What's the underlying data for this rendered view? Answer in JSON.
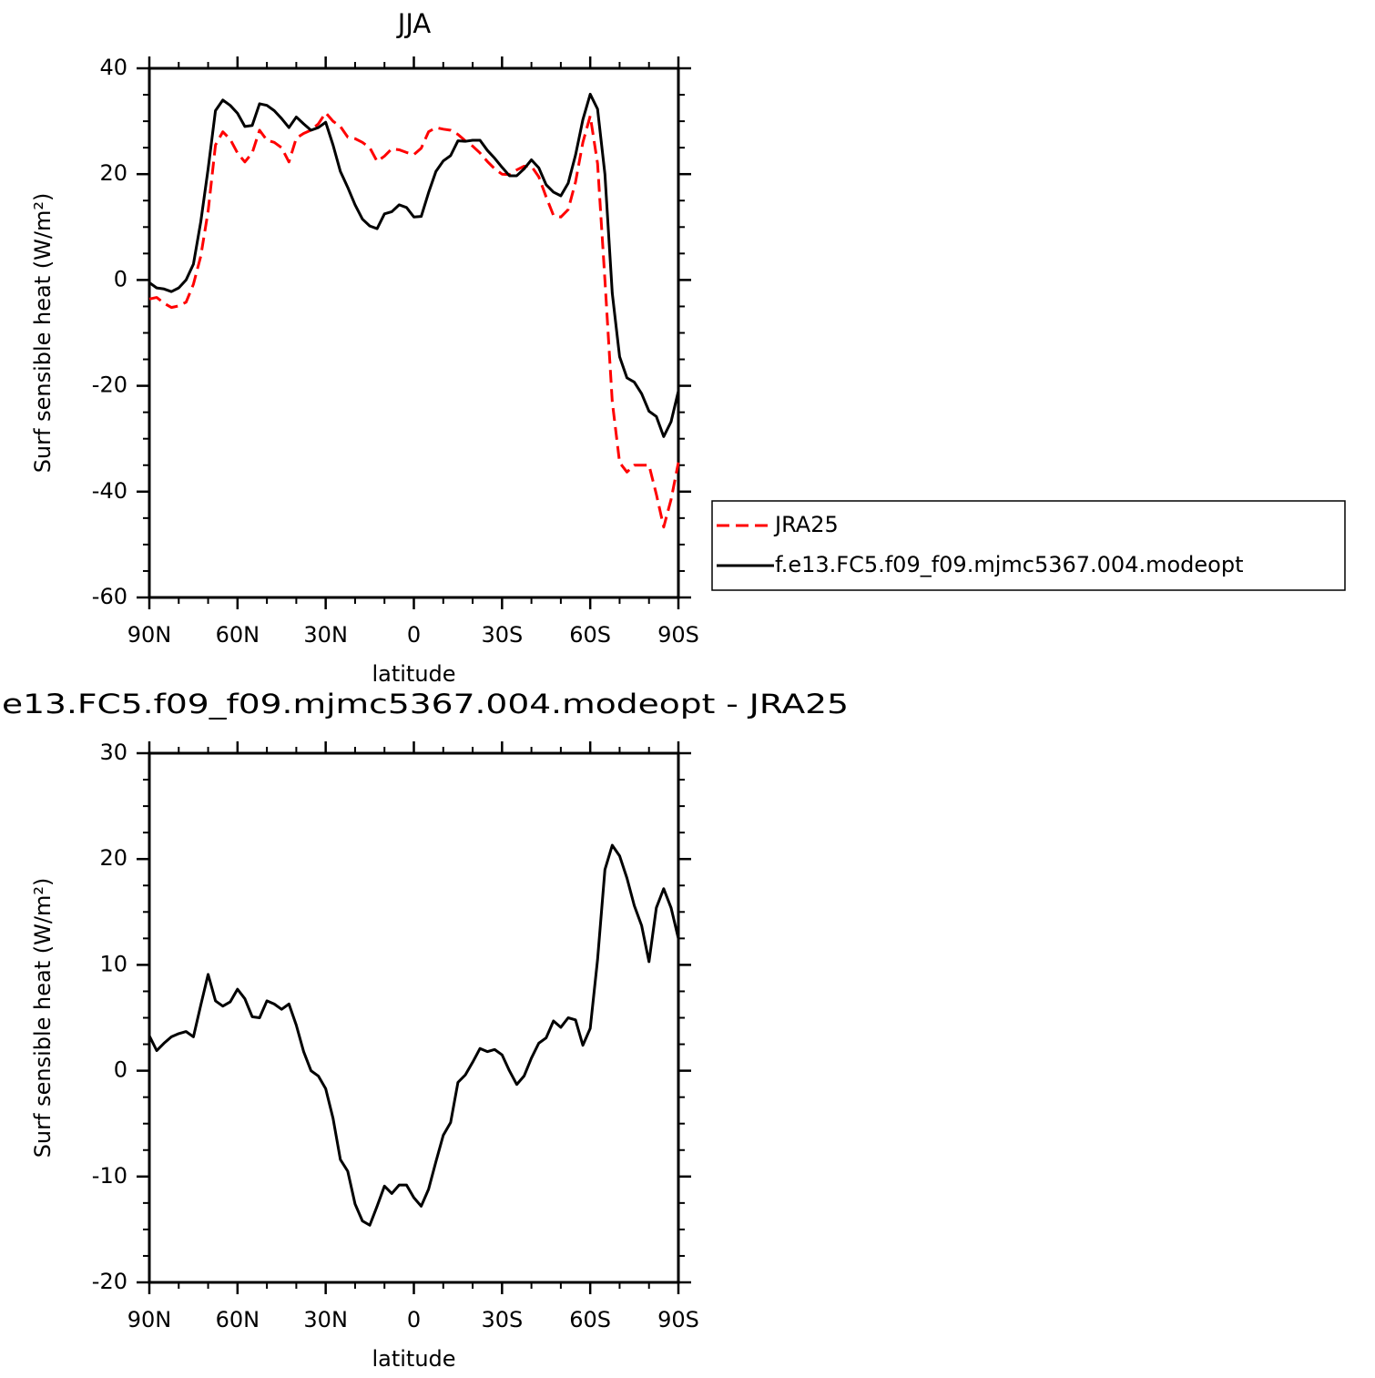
{
  "chart_data": [
    {
      "type": "line",
      "title": "JJA",
      "xlabel": "latitude",
      "ylabel": "Surf sensible heat (W/m²)",
      "x": [
        90,
        87.5,
        85,
        82.5,
        80,
        77.5,
        75,
        72.5,
        70,
        67.5,
        65,
        62.5,
        60,
        57.5,
        55,
        52.5,
        50,
        47.5,
        45,
        42.5,
        40,
        37.5,
        35,
        32.5,
        30,
        27.5,
        25,
        22.5,
        20,
        17.5,
        15,
        12.5,
        10,
        7.5,
        5,
        2.5,
        0,
        -2.5,
        -5,
        -7.5,
        -10,
        -12.5,
        -15,
        -17.5,
        -20,
        -22.5,
        -25,
        -27.5,
        -30,
        -32.5,
        -35,
        -37.5,
        -40,
        -42.5,
        -45,
        -47.5,
        -50,
        -52.5,
        -55,
        -57.5,
        -60,
        -62.5,
        -65,
        -67.5,
        -70,
        -72.5,
        -75,
        -77.5,
        -80,
        -82.5,
        -85,
        -87.5,
        -90
      ],
      "xlim": [
        90,
        -90
      ],
      "xticks": [
        {
          "value": 90,
          "label": "90N"
        },
        {
          "value": 60,
          "label": "60N"
        },
        {
          "value": 30,
          "label": "30N"
        },
        0,
        {
          "value": -30,
          "label": "30S"
        },
        {
          "value": -60,
          "label": "60S"
        },
        {
          "value": -90,
          "label": "90S"
        }
      ],
      "xticks_minor": [
        80,
        70,
        50,
        40,
        20,
        10,
        -10,
        -20,
        -40,
        -50,
        -70,
        -80
      ],
      "ylim": [
        -60,
        40
      ],
      "yticks": [
        -60,
        -40,
        -20,
        0,
        20,
        40
      ],
      "yticks_minor": [
        -55,
        -50,
        -45,
        -35,
        -30,
        -25,
        -15,
        -10,
        -5,
        5,
        10,
        15,
        25,
        30,
        35
      ],
      "legend": "outside-right",
      "series": [
        {
          "name": "JRA25",
          "color": "#ff0000",
          "line_style": "dashed",
          "values": [
            -3.6,
            -3.3,
            -4.4,
            -5.2,
            -4.9,
            -4.2,
            -0.8,
            4.5,
            13,
            25.5,
            28,
            26.6,
            24,
            22.3,
            24,
            28.3,
            26.4,
            26,
            25,
            22.3,
            26.8,
            27.7,
            28.3,
            29.5,
            31.6,
            30,
            29,
            27,
            26.7,
            26,
            25,
            22.4,
            23.4,
            24.8,
            24.6,
            24.1,
            23.7,
            24.9,
            28,
            28.8,
            28.5,
            28.3,
            27.5,
            26.3,
            25.3,
            24,
            22.4,
            21,
            20,
            19.9,
            20.8,
            21.5,
            21.5,
            19.5,
            15.7,
            12.2,
            11.9,
            13.3,
            18.5,
            26,
            31,
            22,
            0,
            -23,
            -34.5,
            -36.3,
            -35,
            -35,
            -35,
            -40.5,
            -46.7,
            -41.5,
            -34.5
          ]
        },
        {
          "name": "f.e13.FC5.f09_f09.mjmc5367.004.modeopt",
          "color": "#000000",
          "line_style": "solid",
          "values": [
            -0.5,
            -1.5,
            -1.7,
            -2.2,
            -1.5,
            0,
            3,
            11,
            21,
            32,
            34,
            33,
            31.5,
            29,
            29.2,
            33.3,
            33,
            32,
            30.5,
            28.8,
            30.8,
            29.5,
            28.3,
            28.8,
            29.8,
            25.5,
            20.5,
            17.5,
            14.2,
            11.5,
            10.2,
            9.7,
            12.5,
            12.9,
            14.2,
            13.7,
            11.9,
            12,
            16.5,
            20.5,
            22.5,
            23.5,
            26.3,
            26.2,
            26.4,
            26.4,
            24.5,
            23,
            21.3,
            19.7,
            19.7,
            21,
            22.7,
            21.2,
            18,
            16.6,
            15.9,
            18.3,
            23.6,
            30.3,
            35.1,
            32.3,
            20,
            -2.5,
            -14.5,
            -18.5,
            -19.3,
            -21.5,
            -24.8,
            -25.8,
            -29.6,
            -26.8,
            -21
          ]
        }
      ]
    },
    {
      "type": "line",
      "title": "e13.FC5.f09_f09.mjmc5367.004.modeopt - JRA25",
      "xlabel": "latitude",
      "ylabel": "Surf sensible heat (W/m²)",
      "x": [
        90,
        87.5,
        85,
        82.5,
        80,
        77.5,
        75,
        72.5,
        70,
        67.5,
        65,
        62.5,
        60,
        57.5,
        55,
        52.5,
        50,
        47.5,
        45,
        42.5,
        40,
        37.5,
        35,
        32.5,
        30,
        27.5,
        25,
        22.5,
        20,
        17.5,
        15,
        12.5,
        10,
        7.5,
        5,
        2.5,
        0,
        -2.5,
        -5,
        -7.5,
        -10,
        -12.5,
        -15,
        -17.5,
        -20,
        -22.5,
        -25,
        -27.5,
        -30,
        -32.5,
        -35,
        -37.5,
        -40,
        -42.5,
        -45,
        -47.5,
        -50,
        -52.5,
        -55,
        -57.5,
        -60,
        -62.5,
        -65,
        -67.5,
        -70,
        -72.5,
        -75,
        -77.5,
        -80,
        -82.5,
        -85,
        -87.5,
        -90
      ],
      "xlim": [
        90,
        -90
      ],
      "xticks": [
        {
          "value": 90,
          "label": "90N"
        },
        {
          "value": 60,
          "label": "60N"
        },
        {
          "value": 30,
          "label": "30N"
        },
        0,
        {
          "value": -30,
          "label": "30S"
        },
        {
          "value": -60,
          "label": "60S"
        },
        {
          "value": -90,
          "label": "90S"
        }
      ],
      "xticks_minor": [
        80,
        70,
        50,
        40,
        20,
        10,
        -10,
        -20,
        -40,
        -50,
        -70,
        -80
      ],
      "ylim": [
        -20,
        30
      ],
      "yticks": [
        -20,
        -10,
        0,
        10,
        20,
        30
      ],
      "yticks_minor": [
        -17.5,
        -15,
        -12.5,
        -7.5,
        -5,
        -2.5,
        2.5,
        5,
        7.5,
        12.5,
        15,
        17.5,
        22.5,
        25,
        27.5
      ],
      "series": [
        {
          "color": "#000000",
          "line_style": "solid",
          "values": [
            3.3,
            1.9,
            2.6,
            3.2,
            3.5,
            3.7,
            3.2,
            6.2,
            9.1,
            6.6,
            6.1,
            6.5,
            7.7,
            6.8,
            5.1,
            5,
            6.6,
            6.3,
            5.8,
            6.3,
            4.3,
            1.8,
            0,
            -0.5,
            -1.7,
            -4.5,
            -8.4,
            -9.5,
            -12.6,
            -14.2,
            -14.6,
            -12.8,
            -10.9,
            -11.6,
            -10.8,
            -10.8,
            -12,
            -12.8,
            -11.2,
            -8.6,
            -6.1,
            -4.9,
            -1.1,
            -0.4,
            0.8,
            2.1,
            1.8,
            2,
            1.5,
            0,
            -1.3,
            -0.5,
            1.2,
            2.6,
            3.1,
            4.7,
            4.1,
            5,
            4.8,
            2.4,
            4,
            10.5,
            19,
            21.3,
            20.3,
            18.2,
            15.6,
            13.7,
            10.3,
            15.4,
            17.2,
            15.4,
            12.5
          ]
        }
      ]
    }
  ]
}
